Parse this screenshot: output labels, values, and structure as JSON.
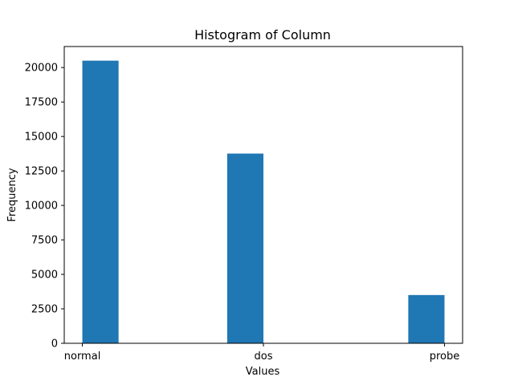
{
  "chart_data": {
    "type": "bar",
    "title": "Histogram of Column",
    "xlabel": "Values",
    "ylabel": "Frequency",
    "categories": [
      "normal",
      "dos",
      "probe"
    ],
    "bins": [
      {
        "label": "normal",
        "value": 20500
      },
      {
        "label": "dos",
        "value": 13760
      },
      {
        "label": "probe",
        "value": 3500
      }
    ],
    "yticks": [
      0,
      2500,
      5000,
      7500,
      10000,
      12500,
      15000,
      17500,
      20000
    ],
    "ylim": [
      0,
      21525
    ],
    "xlim": [
      -0.1,
      2.1
    ],
    "bin_edges": [
      0,
      0.2,
      0.8,
      1.0,
      1.8,
      2.0
    ],
    "bar_color": "#1f77b4",
    "grid": false
  }
}
